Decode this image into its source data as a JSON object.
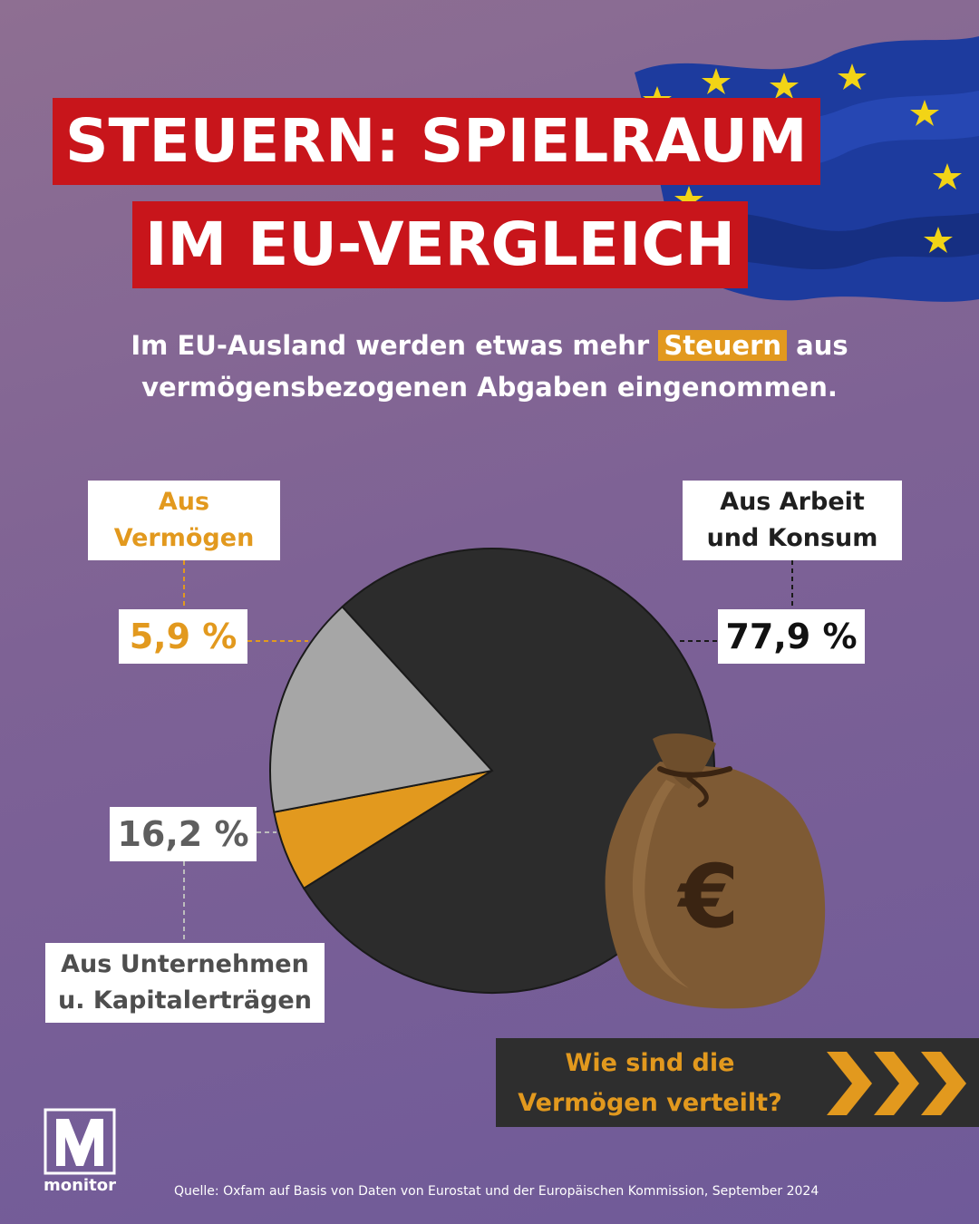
{
  "title": {
    "line1": "STEUERN: SPIELRAUM",
    "line2": "IM EU-VERGLEICH"
  },
  "subtitle": {
    "before": "Im EU-Ausland werden etwas mehr",
    "highlight": "Steuern",
    "after": "aus",
    "line2": "vermögensbezogenen Abgaben eingenommen."
  },
  "labels": {
    "vermoegen": [
      "Aus",
      "Vermögen"
    ],
    "arbeit": [
      "Aus Arbeit",
      "und Konsum"
    ],
    "unternehmen": [
      "Aus Unternehmen",
      "u. Kapitalerträgen"
    ]
  },
  "percent_labels": {
    "vermoegen": "5,9 %",
    "arbeit": "77,9 %",
    "unternehmen": "16,2 %"
  },
  "chart_data": {
    "type": "pie",
    "unit": "%",
    "slices": [
      {
        "label": "Aus Vermögen",
        "value": 5.9,
        "color": "#e2991e"
      },
      {
        "label": "Aus Unternehmen u. Kapitalerträgen",
        "value": 16.2,
        "color": "#a6a6a6"
      },
      {
        "label": "Aus Arbeit und Konsum",
        "value": 77.9,
        "color": "#2c2c2c"
      }
    ]
  },
  "money_bag_symbol": "€",
  "cta": {
    "line1": "Wie sind die",
    "line2": "Vermögen verteilt?"
  },
  "logo": {
    "text": "monitor"
  },
  "source": "Quelle: Oxfam auf Basis von Daten von Eurostat und der Europäischen Kommission, September 2024",
  "colors": {
    "title_bg": "#c8151b",
    "accent": "#e2991e",
    "dark": "#2c2c2c",
    "grey": "#a6a6a6"
  }
}
